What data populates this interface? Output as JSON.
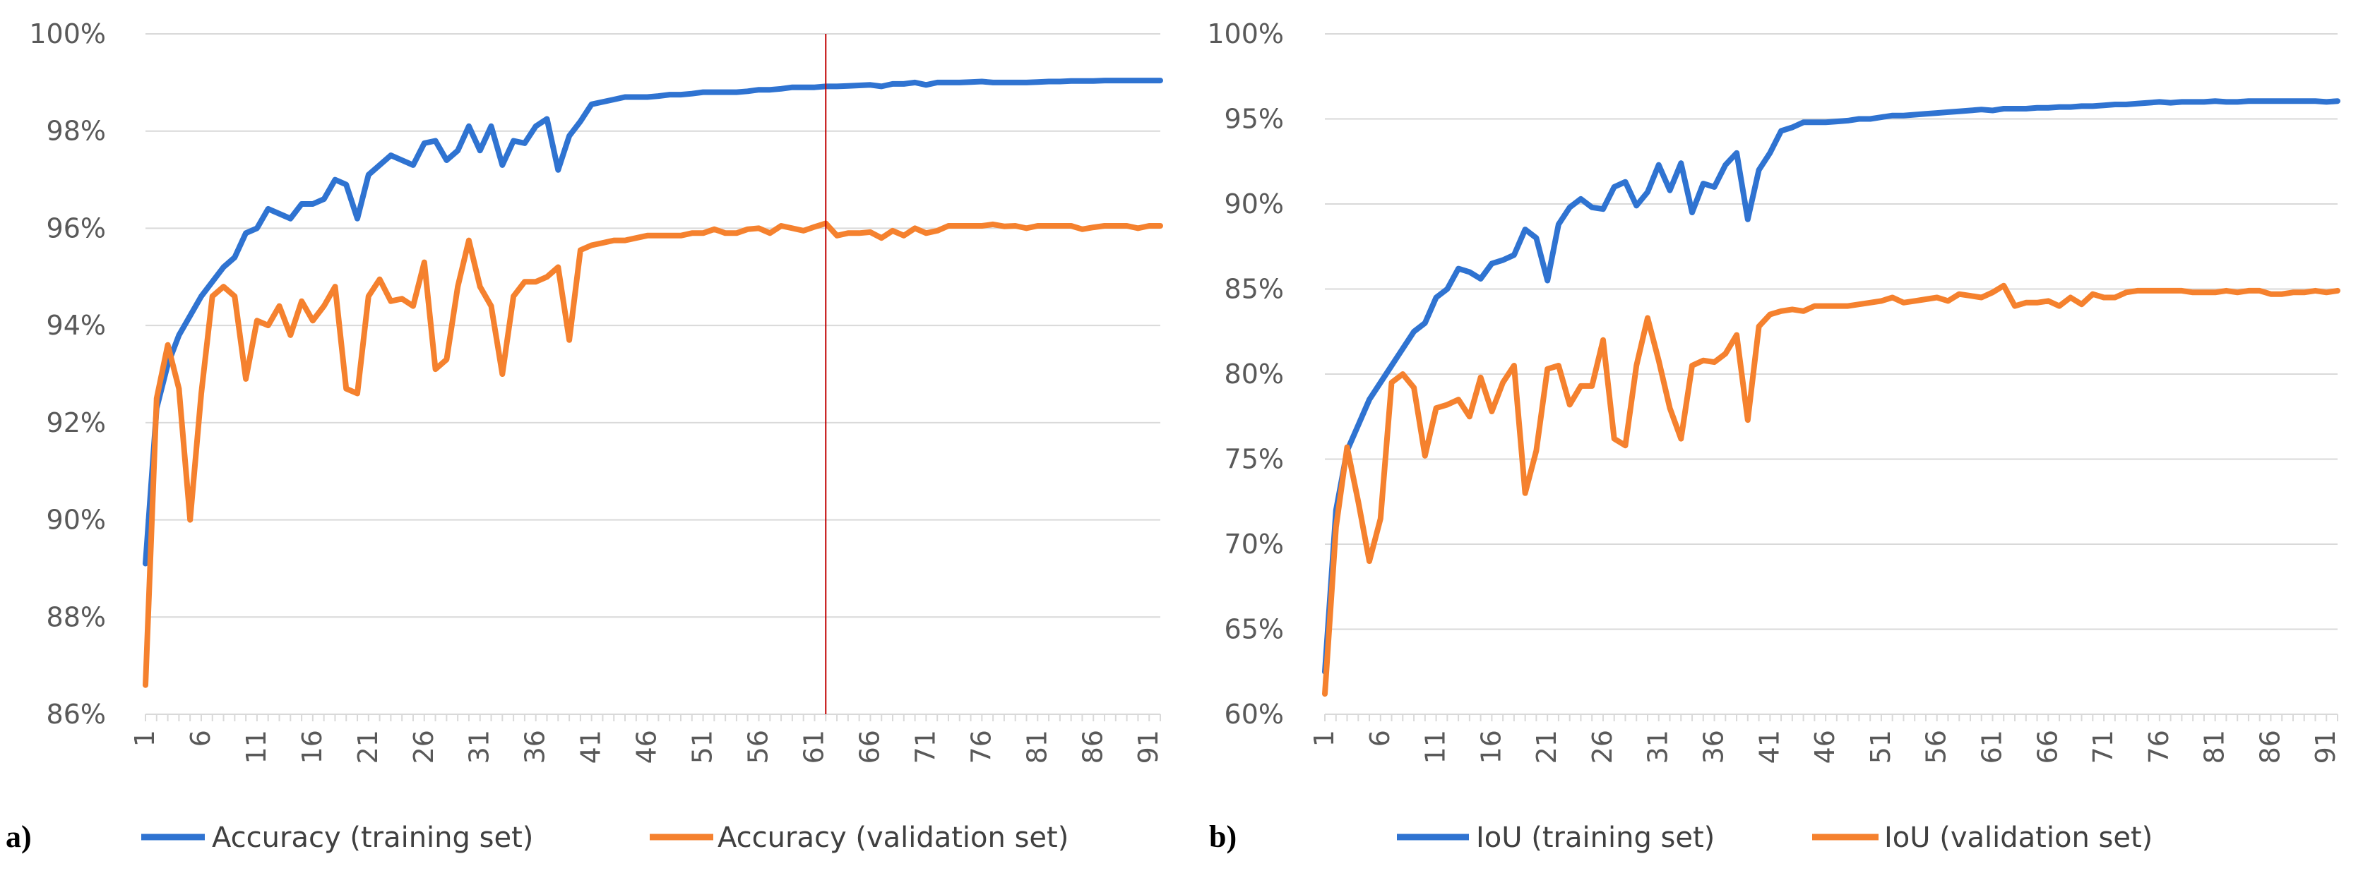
{
  "colors": {
    "training": "#2F73D1",
    "validation": "#F5812E",
    "grid": "#D9D9D9",
    "marker": "#C00000"
  },
  "chart_data": [
    {
      "type": "line",
      "panel_label": "a)",
      "title": "",
      "xlabel": "",
      "ylabel": "",
      "x_ticks": [
        "1",
        "6",
        "11",
        "16",
        "21",
        "26",
        "31",
        "36",
        "41",
        "46",
        "51",
        "56",
        "61",
        "66",
        "71",
        "76",
        "81",
        "86",
        "91"
      ],
      "y_ticks": [
        "86%",
        "88%",
        "90%",
        "92%",
        "94%",
        "96%",
        "98%",
        "100%"
      ],
      "ylim": [
        86,
        100
      ],
      "xlim": [
        1,
        92
      ],
      "vertical_marker_x": 62,
      "series": [
        {
          "name": "Accuracy (training set)",
          "values": [
            89.1,
            92.3,
            93.2,
            93.8,
            94.2,
            94.6,
            94.9,
            95.2,
            95.4,
            95.9,
            96.0,
            96.4,
            96.3,
            96.2,
            96.5,
            96.5,
            96.6,
            97.0,
            96.9,
            96.2,
            97.1,
            97.3,
            97.5,
            97.4,
            97.3,
            97.75,
            97.8,
            97.4,
            97.6,
            98.1,
            97.6,
            98.1,
            97.3,
            97.8,
            97.75,
            98.1,
            98.25,
            97.2,
            97.9,
            98.2,
            98.55,
            98.6,
            98.65,
            98.7,
            98.7,
            98.7,
            98.72,
            98.75,
            98.75,
            98.77,
            98.8,
            98.8,
            98.8,
            98.8,
            98.82,
            98.85,
            98.85,
            98.87,
            98.9,
            98.9,
            98.9,
            98.92,
            98.92,
            98.93,
            98.94,
            98.95,
            98.92,
            98.97,
            98.97,
            99.0,
            98.95,
            99.0,
            99.0,
            99.0,
            99.01,
            99.02,
            99.0,
            99.0,
            99.0,
            99.0,
            99.01,
            99.02,
            99.02,
            99.03,
            99.03,
            99.03,
            99.04,
            99.04,
            99.04,
            99.04,
            99.04,
            99.04
          ]
        },
        {
          "name": "Accuracy (validation set)",
          "values": [
            86.6,
            92.5,
            93.6,
            92.7,
            90.0,
            92.6,
            94.6,
            94.8,
            94.6,
            92.9,
            94.1,
            94.0,
            94.4,
            93.8,
            94.5,
            94.1,
            94.4,
            94.8,
            92.7,
            92.6,
            94.6,
            94.95,
            94.5,
            94.55,
            94.4,
            95.3,
            93.1,
            93.3,
            94.8,
            95.75,
            94.8,
            94.4,
            93.0,
            94.6,
            94.9,
            94.9,
            95.0,
            95.2,
            93.7,
            95.55,
            95.65,
            95.7,
            95.75,
            95.75,
            95.8,
            95.85,
            95.85,
            95.85,
            95.85,
            95.9,
            95.9,
            95.98,
            95.9,
            95.9,
            95.98,
            96.0,
            95.9,
            96.05,
            96.0,
            95.95,
            96.03,
            96.1,
            95.85,
            95.9,
            95.9,
            95.92,
            95.8,
            95.95,
            95.85,
            96.0,
            95.9,
            95.95,
            96.05,
            96.05,
            96.05,
            96.05,
            96.08,
            96.04,
            96.05,
            96.0,
            96.05,
            96.05,
            96.05,
            96.05,
            95.98,
            96.02,
            96.05,
            96.05,
            96.05,
            96.0,
            96.05,
            96.05
          ]
        }
      ]
    },
    {
      "type": "line",
      "panel_label": "b)",
      "title": "",
      "xlabel": "",
      "ylabel": "",
      "x_ticks": [
        "1",
        "6",
        "11",
        "16",
        "21",
        "26",
        "31",
        "36",
        "41",
        "46",
        "51",
        "56",
        "61",
        "66",
        "71",
        "76",
        "81",
        "86",
        "91"
      ],
      "y_ticks": [
        "60%",
        "65%",
        "70%",
        "75%",
        "80%",
        "85%",
        "90%",
        "95%",
        "100%"
      ],
      "ylim": [
        60,
        100
      ],
      "xlim": [
        1,
        92
      ],
      "series": [
        {
          "name": "IoU (training set)",
          "values": [
            62.5,
            72.0,
            75.5,
            77.0,
            78.5,
            79.5,
            80.5,
            81.5,
            82.5,
            83.0,
            84.5,
            85.0,
            86.2,
            86.0,
            85.6,
            86.5,
            86.7,
            87.0,
            88.5,
            88.0,
            85.5,
            88.8,
            89.8,
            90.3,
            89.8,
            89.7,
            91.0,
            91.3,
            89.9,
            90.7,
            92.3,
            90.8,
            92.4,
            89.5,
            91.2,
            91.0,
            92.3,
            93.0,
            89.1,
            92.0,
            93.0,
            94.3,
            94.5,
            94.8,
            94.8,
            94.8,
            94.85,
            94.9,
            95.0,
            95.0,
            95.1,
            95.2,
            95.2,
            95.25,
            95.3,
            95.35,
            95.4,
            95.45,
            95.5,
            95.55,
            95.5,
            95.6,
            95.6,
            95.6,
            95.65,
            95.65,
            95.7,
            95.7,
            95.75,
            95.75,
            95.8,
            95.85,
            95.85,
            95.9,
            95.95,
            96.0,
            95.95,
            96.0,
            96.0,
            96.0,
            96.05,
            96.0,
            96.0,
            96.05,
            96.05,
            96.05,
            96.05,
            96.05,
            96.05,
            96.05,
            96.0,
            96.05
          ]
        },
        {
          "name": "IoU (validation set)",
          "values": [
            61.2,
            71.0,
            75.7,
            72.5,
            69.0,
            71.5,
            79.5,
            80.0,
            79.2,
            75.2,
            78.0,
            78.2,
            78.5,
            77.5,
            79.8,
            77.8,
            79.5,
            80.5,
            73.0,
            75.5,
            80.3,
            80.5,
            78.2,
            79.3,
            79.3,
            82.0,
            76.2,
            75.8,
            80.5,
            83.3,
            80.8,
            78.0,
            76.2,
            80.5,
            80.8,
            80.7,
            81.2,
            82.3,
            77.3,
            82.8,
            83.5,
            83.7,
            83.8,
            83.7,
            84.0,
            84.0,
            84.0,
            84.0,
            84.1,
            84.2,
            84.3,
            84.5,
            84.2,
            84.3,
            84.4,
            84.5,
            84.3,
            84.7,
            84.6,
            84.5,
            84.8,
            85.2,
            84.0,
            84.2,
            84.2,
            84.3,
            84.0,
            84.5,
            84.1,
            84.7,
            84.5,
            84.5,
            84.8,
            84.9,
            84.9,
            84.9,
            84.9,
            84.9,
            84.8,
            84.8,
            84.8,
            84.9,
            84.8,
            84.9,
            84.9,
            84.7,
            84.7,
            84.8,
            84.8,
            84.9,
            84.8,
            84.9
          ]
        }
      ]
    }
  ]
}
